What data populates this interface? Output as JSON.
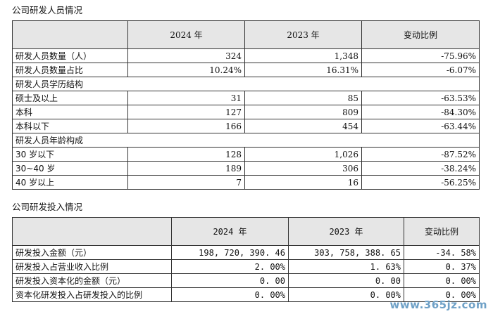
{
  "section1": {
    "title": "公司研发人员情况",
    "headers": [
      "",
      "2024 年",
      "2023 年",
      "变动比例"
    ],
    "rows": [
      {
        "type": "data",
        "label": "研发人员数量（人）",
        "v2024": "324",
        "v2023": "1,348",
        "change": "-75.96%"
      },
      {
        "type": "data",
        "label": "研发人员数量占比",
        "v2024": "10.24%",
        "v2023": "16.31%",
        "change": "-6.07%"
      },
      {
        "type": "group",
        "label": "研发人员学历结构"
      },
      {
        "type": "data",
        "label": "硕士及以上",
        "v2024": "31",
        "v2023": "85",
        "change": "-63.53%"
      },
      {
        "type": "data",
        "label": "本科",
        "v2024": "127",
        "v2023": "809",
        "change": "-84.30%"
      },
      {
        "type": "data",
        "label": "本科以下",
        "v2024": "166",
        "v2023": "454",
        "change": "-63.44%"
      },
      {
        "type": "group",
        "label": "研发人员年龄构成"
      },
      {
        "type": "data",
        "label": "30 岁以下",
        "v2024": "128",
        "v2023": "1,026",
        "change": "-87.52%"
      },
      {
        "type": "data",
        "label": "30~40 岁",
        "v2024": "189",
        "v2023": "306",
        "change": "-38.24%"
      },
      {
        "type": "data",
        "label": "40 岁以上",
        "v2024": "7",
        "v2023": "16",
        "change": "-56.25%"
      }
    ]
  },
  "section2": {
    "title": "公司研发投入情况",
    "headers": [
      "",
      "2024 年",
      "2023 年",
      "变动比例"
    ],
    "rows": [
      {
        "type": "data",
        "label": "研发投入金额（元）",
        "v2024": "198, 720, 390. 46",
        "v2023": "303, 758, 388. 65",
        "change": "-34. 58%"
      },
      {
        "type": "data",
        "label": "研发投入占营业收入比例",
        "v2024": "2. 00%",
        "v2023": "1. 63%",
        "change": "0. 37%"
      },
      {
        "type": "data",
        "label": "研发投入资本化的金额（元）",
        "v2024": "0. 00",
        "v2023": "0. 00",
        "change": "0. 00%"
      },
      {
        "type": "data",
        "label": "资本化研发投入占研发投入的比例",
        "v2024": "0. 00%",
        "v2023": "0. 00%",
        "change": "0. 00%"
      }
    ]
  },
  "watermark": "www.365jz.com"
}
